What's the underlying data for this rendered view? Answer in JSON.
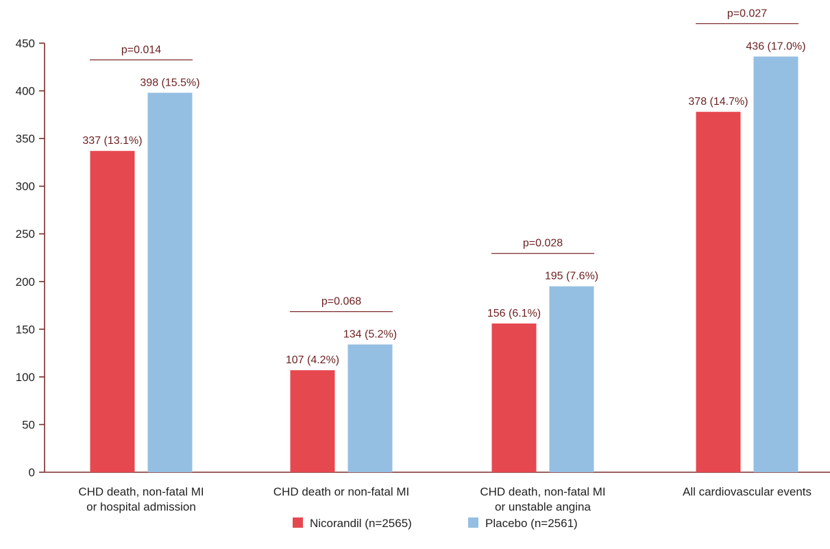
{
  "chart_data": {
    "type": "bar",
    "categories": [
      [
        "CHD death, non-fatal MI",
        "or hospital admission"
      ],
      [
        "CHD death or non-fatal MI"
      ],
      [
        "CHD death, non-fatal MI",
        "or unstable angina"
      ],
      [
        "All cardiovascular events"
      ]
    ],
    "series": [
      {
        "name": "Nicorandil (n=2565)",
        "color": "#e64850",
        "values": [
          337,
          107,
          156,
          378
        ],
        "labels": [
          "337 (13.1%)",
          "107 (4.2%)",
          "156 (6.1%)",
          "378 (14.7%)"
        ]
      },
      {
        "name": "Placebo (n=2561)",
        "color": "#95bfe2",
        "values": [
          398,
          134,
          195,
          436
        ],
        "labels": [
          "398 (15.5%)",
          "134 (5.2%)",
          "195 (7.6%)",
          "436 (17.0%)"
        ]
      }
    ],
    "p_values": [
      "p=0.014",
      "p=0.068",
      "p=0.028",
      "p=0.027"
    ],
    "ylim": [
      0,
      450
    ],
    "yticks": [
      0,
      50,
      100,
      150,
      200,
      250,
      300,
      350,
      400,
      450
    ],
    "xlabel": "",
    "ylabel": "",
    "title": "",
    "grid": false,
    "legend_position": "bottom-center",
    "axis_color": "#7a2a2a",
    "annotation_color": "#6b1f1f"
  }
}
